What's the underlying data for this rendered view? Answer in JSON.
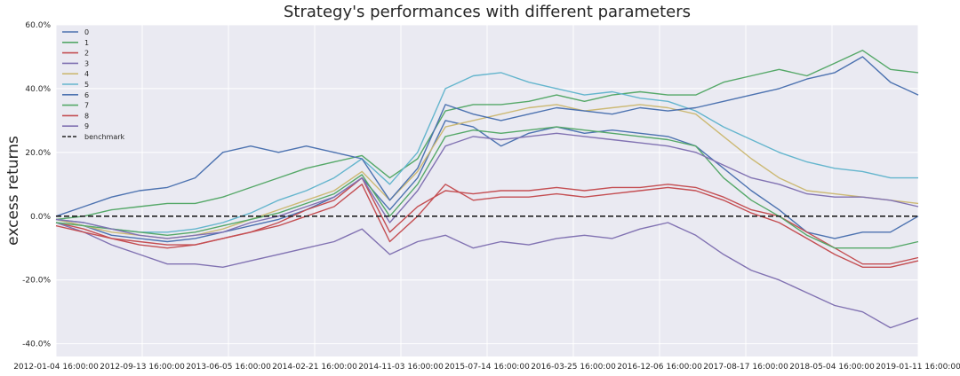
{
  "chart_data": {
    "type": "line",
    "title": "Strategy's performances with different parameters",
    "xlabel": "",
    "ylabel": "excess returns",
    "x_ticks": [
      "2012-01-04 16:00:00",
      "2012-09-13 16:00:00",
      "2013-06-05 16:00:00",
      "2014-02-21 16:00:00",
      "2014-11-03 16:00:00",
      "2015-07-14 16:00:00",
      "2016-03-25 16:00:00",
      "2016-12-06 16:00:00",
      "2017-08-17 16:00:00",
      "2018-05-04 16:00:00",
      "2019-01-11 16:00:00"
    ],
    "y_ticks": [
      "60.0%",
      "40.0%",
      "20.0%",
      "0.0%",
      "-20.0%",
      "-40.0%"
    ],
    "ylim": [
      -0.44,
      0.6
    ],
    "grid": true,
    "legend_position": "top-left",
    "x": [
      "2012-01",
      "2012-04",
      "2012-07",
      "2012-10",
      "2013-01",
      "2013-04",
      "2013-07",
      "2013-10",
      "2014-01",
      "2014-04",
      "2014-07",
      "2014-10",
      "2014-12",
      "2015-02",
      "2015-04",
      "2015-06",
      "2015-08",
      "2015-10",
      "2015-12",
      "2016-03",
      "2016-06",
      "2016-09",
      "2016-12",
      "2017-03",
      "2017-06",
      "2017-09",
      "2017-12",
      "2018-03",
      "2018-06",
      "2018-09",
      "2018-12",
      "2019-02"
    ],
    "series": [
      {
        "name": "0",
        "color": "#4c72b0",
        "values": [
          -0.01,
          -0.03,
          -0.06,
          -0.07,
          -0.08,
          -0.07,
          -0.05,
          -0.03,
          -0.01,
          0.02,
          0.06,
          0.12,
          0.02,
          0.12,
          0.3,
          0.28,
          0.22,
          0.26,
          0.28,
          0.26,
          0.27,
          0.26,
          0.25,
          0.22,
          0.15,
          0.08,
          0.02,
          -0.05,
          -0.07,
          -0.05,
          -0.05,
          0.0
        ]
      },
      {
        "name": "1",
        "color": "#55a868",
        "values": [
          -0.01,
          0.0,
          0.02,
          0.03,
          0.04,
          0.04,
          0.06,
          0.09,
          0.12,
          0.15,
          0.17,
          0.19,
          0.12,
          0.18,
          0.33,
          0.35,
          0.35,
          0.36,
          0.38,
          0.36,
          0.38,
          0.39,
          0.38,
          0.38,
          0.42,
          0.44,
          0.46,
          0.44,
          0.48,
          0.52,
          0.46,
          0.45
        ]
      },
      {
        "name": "2",
        "color": "#c44e52",
        "values": [
          -0.02,
          -0.04,
          -0.07,
          -0.08,
          -0.09,
          -0.09,
          -0.07,
          -0.05,
          -0.02,
          0.02,
          0.05,
          0.12,
          -0.05,
          0.03,
          0.08,
          0.07,
          0.08,
          0.08,
          0.09,
          0.08,
          0.09,
          0.09,
          0.1,
          0.09,
          0.06,
          0.02,
          0.0,
          -0.05,
          -0.1,
          -0.15,
          -0.15,
          -0.13
        ]
      },
      {
        "name": "3",
        "color": "#8172b2",
        "values": [
          -0.02,
          -0.05,
          -0.09,
          -0.12,
          -0.15,
          -0.15,
          -0.16,
          -0.14,
          -0.12,
          -0.1,
          -0.08,
          -0.04,
          -0.12,
          -0.08,
          -0.06,
          -0.1,
          -0.08,
          -0.09,
          -0.07,
          -0.06,
          -0.07,
          -0.04,
          -0.02,
          -0.06,
          -0.12,
          -0.17,
          -0.2,
          -0.24,
          -0.28,
          -0.3,
          -0.35,
          -0.32
        ]
      },
      {
        "name": "4",
        "color": "#ccb974",
        "values": [
          -0.01,
          -0.03,
          -0.05,
          -0.06,
          -0.07,
          -0.06,
          -0.04,
          -0.01,
          0.02,
          0.05,
          0.08,
          0.14,
          0.05,
          0.14,
          0.28,
          0.3,
          0.32,
          0.34,
          0.35,
          0.33,
          0.34,
          0.35,
          0.34,
          0.32,
          0.25,
          0.18,
          0.12,
          0.08,
          0.07,
          0.06,
          0.05,
          0.04
        ]
      },
      {
        "name": "5",
        "color": "#64b5cd",
        "values": [
          -0.01,
          -0.02,
          -0.04,
          -0.05,
          -0.05,
          -0.04,
          -0.02,
          0.01,
          0.05,
          0.08,
          0.12,
          0.18,
          0.1,
          0.2,
          0.4,
          0.44,
          0.45,
          0.42,
          0.4,
          0.38,
          0.39,
          0.37,
          0.36,
          0.33,
          0.28,
          0.24,
          0.2,
          0.17,
          0.15,
          0.14,
          0.12,
          0.12
        ]
      },
      {
        "name": "6",
        "color": "#4c72b0",
        "values": [
          0.0,
          0.03,
          0.06,
          0.08,
          0.09,
          0.12,
          0.2,
          0.22,
          0.2,
          0.22,
          0.2,
          0.18,
          0.05,
          0.15,
          0.35,
          0.32,
          0.3,
          0.32,
          0.34,
          0.33,
          0.32,
          0.34,
          0.33,
          0.34,
          0.36,
          0.38,
          0.4,
          0.43,
          0.45,
          0.5,
          0.42,
          0.38
        ]
      },
      {
        "name": "7",
        "color": "#55a868",
        "values": [
          -0.02,
          -0.03,
          -0.04,
          -0.05,
          -0.06,
          -0.05,
          -0.03,
          -0.01,
          0.01,
          0.04,
          0.07,
          0.13,
          0.0,
          0.1,
          0.25,
          0.27,
          0.26,
          0.27,
          0.28,
          0.27,
          0.26,
          0.25,
          0.24,
          0.22,
          0.12,
          0.05,
          0.0,
          -0.06,
          -0.1,
          -0.1,
          -0.1,
          -0.08
        ]
      },
      {
        "name": "8",
        "color": "#c44e52",
        "values": [
          -0.03,
          -0.05,
          -0.07,
          -0.09,
          -0.1,
          -0.09,
          -0.07,
          -0.05,
          -0.03,
          0.0,
          0.03,
          0.1,
          -0.08,
          0.0,
          0.1,
          0.05,
          0.06,
          0.06,
          0.07,
          0.06,
          0.07,
          0.08,
          0.09,
          0.08,
          0.05,
          0.01,
          -0.02,
          -0.07,
          -0.12,
          -0.16,
          -0.16,
          -0.14
        ]
      },
      {
        "name": "9",
        "color": "#8172b2",
        "values": [
          -0.01,
          -0.02,
          -0.04,
          -0.06,
          -0.07,
          -0.06,
          -0.05,
          -0.02,
          0.0,
          0.03,
          0.06,
          0.12,
          -0.02,
          0.08,
          0.22,
          0.25,
          0.24,
          0.25,
          0.26,
          0.25,
          0.24,
          0.23,
          0.22,
          0.2,
          0.16,
          0.12,
          0.1,
          0.07,
          0.06,
          0.06,
          0.05,
          0.03
        ]
      }
    ],
    "benchmark": {
      "name": "benchmark",
      "value": 0.0,
      "color": "#222222",
      "style": "dashed"
    }
  }
}
